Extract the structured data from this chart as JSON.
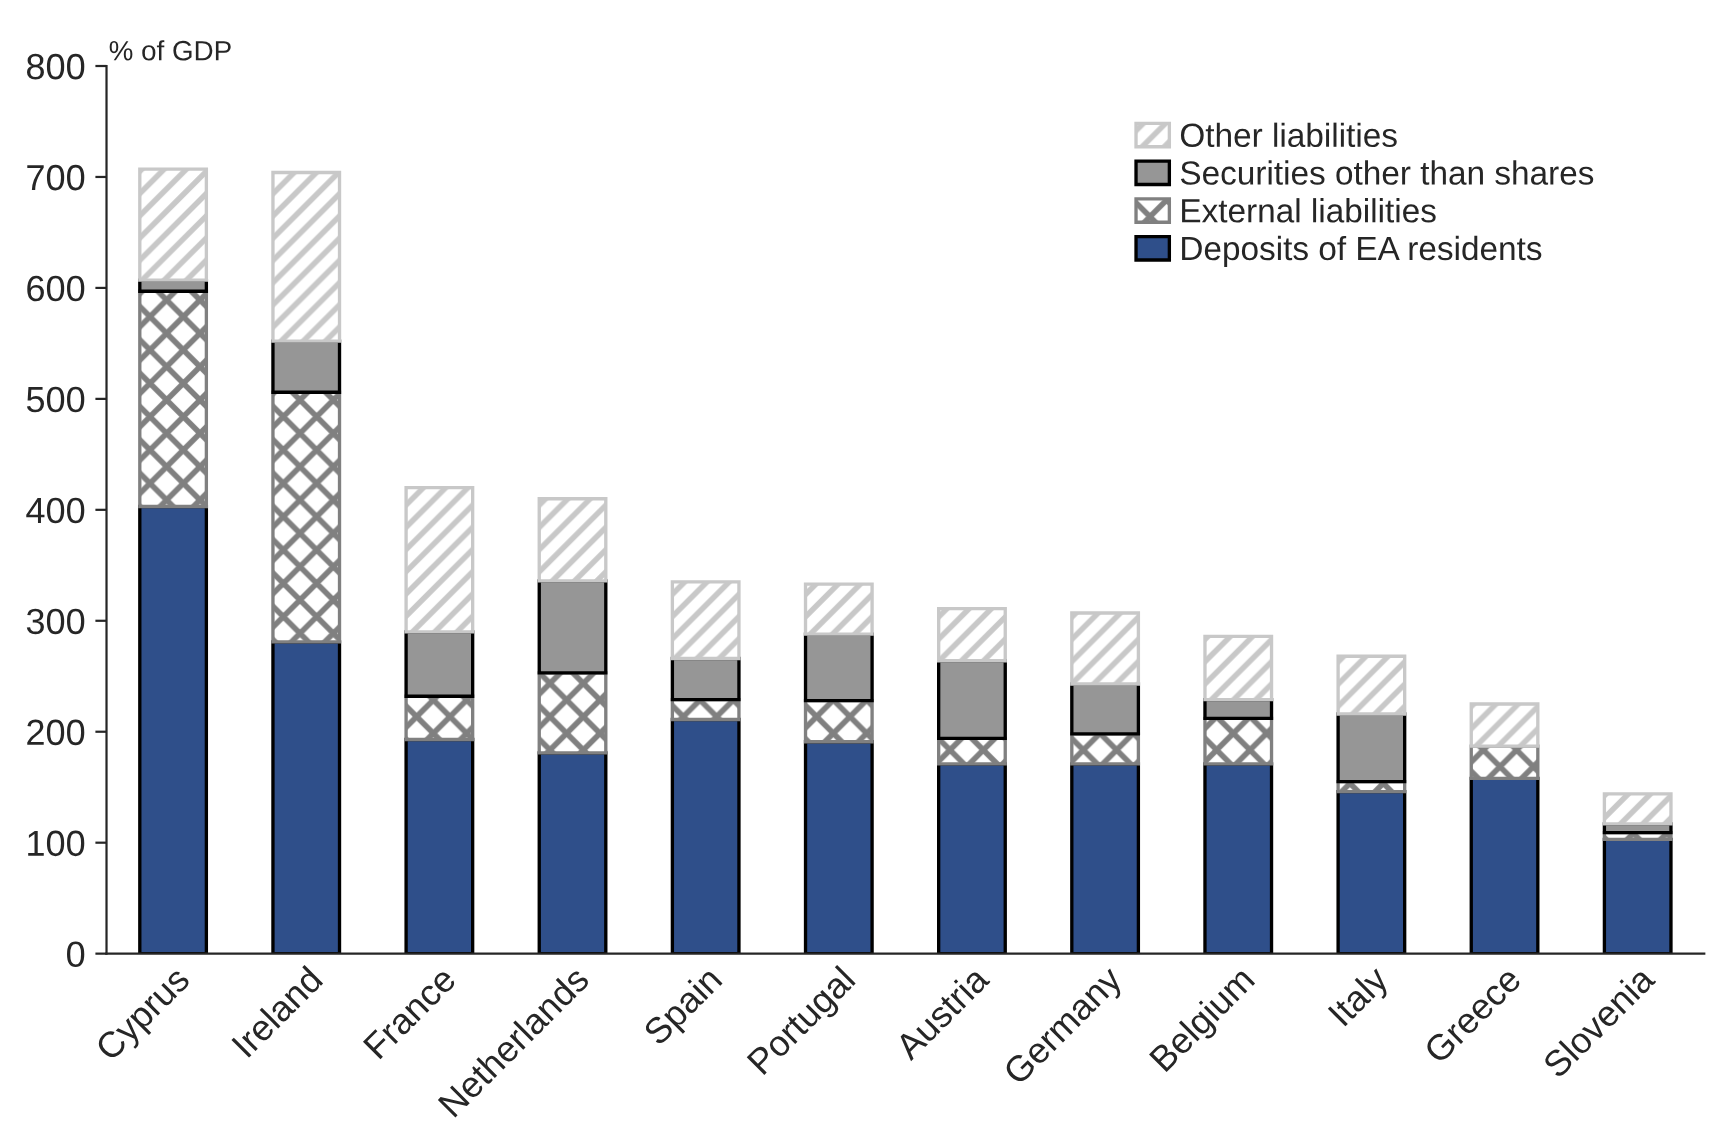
{
  "chart_data": {
    "type": "bar",
    "stacked": true,
    "ylabel": "% of GDP",
    "categories": [
      "Cyprus",
      "Ireland",
      "France",
      "Netherlands",
      "Spain",
      "Portugal",
      "Austria",
      "Germany",
      "Belgium",
      "Italy",
      "Greece",
      "Slovenia"
    ],
    "series": [
      {
        "name": "Deposits of EA residents",
        "color": "#2f4f8a",
        "values": [
          403,
          281,
          193,
          181,
          211,
          191,
          171,
          171,
          171,
          146,
          158,
          103
        ]
      },
      {
        "name": "External liabilities",
        "color": "#808080",
        "values": [
          194,
          225,
          39,
          72,
          18,
          37,
          23,
          27,
          41,
          9,
          29,
          6
        ]
      },
      {
        "name": "Securities other than shares",
        "color": "#969696",
        "values": [
          10,
          46,
          58,
          83,
          37,
          60,
          70,
          45,
          17,
          61,
          null,
          8
        ]
      },
      {
        "name": "Other liabilities",
        "color": "#c8c8c8",
        "values": [
          100,
          152,
          130,
          74,
          69,
          45,
          47,
          64,
          57,
          52,
          38,
          27
        ]
      }
    ],
    "ylim": [
      0,
      800
    ],
    "yticks": [
      0,
      100,
      200,
      300,
      400,
      500,
      600,
      700,
      800
    ],
    "grid": false,
    "legend": "top right"
  }
}
